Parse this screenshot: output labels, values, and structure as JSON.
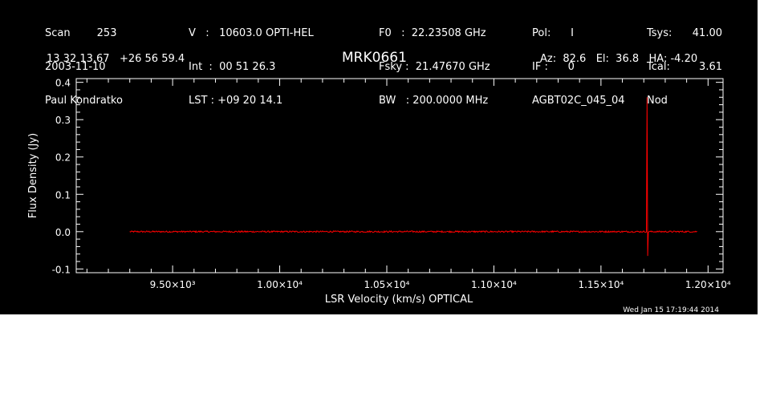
{
  "header": {
    "col1": [
      "Scan        253",
      "2003-11-10",
      "Paul Kondratko"
    ],
    "col2": [
      "V   :   10603.0 OPTI-HEL",
      "Int  :  00 51 26.3",
      "LST : +09 20 14.1"
    ],
    "col3": [
      "F0   :  22.23508 GHz",
      "Fsky :  21.47670 GHz",
      "BW   : 200.0000 MHz"
    ],
    "col4": [
      "Pol:      I",
      "IF :      0",
      "AGBT02C_045_04"
    ],
    "col5": [
      "Tsys:",
      "Tcal:",
      "Nod"
    ],
    "col6": [
      "41.00",
      "3.61",
      ""
    ],
    "coords": "13 32 13.67   +26 56 59.4",
    "source": "MRK0661",
    "azel": "Az:  82.6   El:  36.8   HA: -4.20",
    "timestamp": "Wed Jan 15 17:19:44 2014"
  },
  "chart_data": {
    "type": "line",
    "title": "MRK0661",
    "xlabel": "LSR Velocity (km/s) OPTICAL",
    "ylabel": "Flux Density (Jy)",
    "xlim": [
      9050,
      12070
    ],
    "ylim": [
      -0.11,
      0.41
    ],
    "xticks": [
      {
        "value": 9500,
        "label": "9.50×10³"
      },
      {
        "value": 10000,
        "label": "1.00×10⁴"
      },
      {
        "value": 10500,
        "label": "1.05×10⁴"
      },
      {
        "value": 11000,
        "label": "1.10×10⁴"
      },
      {
        "value": 11500,
        "label": "1.15×10⁴"
      },
      {
        "value": 12000,
        "label": "1.20×10⁴"
      }
    ],
    "yticks": [
      {
        "value": -0.1,
        "label": "-0.1"
      },
      {
        "value": 0.0,
        "label": "0.0"
      },
      {
        "value": 0.1,
        "label": "0.1"
      },
      {
        "value": 0.2,
        "label": "0.2"
      },
      {
        "value": 0.3,
        "label": "0.3"
      },
      {
        "value": 0.4,
        "label": "0.4"
      }
    ],
    "series": [
      {
        "color": "#ff0000",
        "x_range": [
          9300,
          11950
        ],
        "baseline": 0.0,
        "noise_rms": 0.002,
        "features": [
          {
            "x": 11715,
            "y": 0.36
          },
          {
            "x": 11718,
            "y": -0.065
          }
        ]
      }
    ]
  }
}
